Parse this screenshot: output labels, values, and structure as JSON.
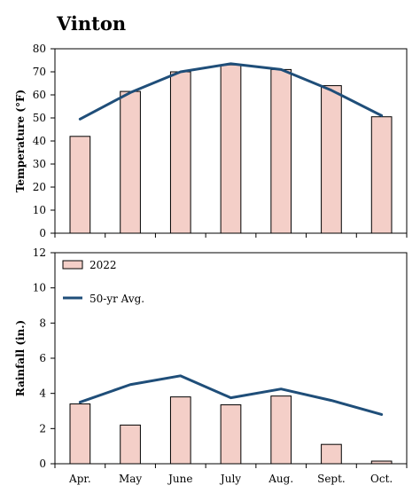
{
  "title": "Vinton",
  "colors": {
    "bar_fill": "#f4cfc8",
    "bar_stroke": "#000000",
    "line": "#1f4e79"
  },
  "chart_data": [
    {
      "type": "bar",
      "categories": [
        "Apr.",
        "May",
        "June",
        "July",
        "Aug.",
        "Sept.",
        "Oct."
      ],
      "ylabel": "Temperature (°F)",
      "ylim": [
        0,
        80
      ],
      "yticks": [
        0,
        10,
        20,
        30,
        40,
        50,
        60,
        70,
        80
      ],
      "show_xtick_labels": false,
      "legend": false,
      "series": [
        {
          "kind": "bar",
          "values": [
            42,
            61.5,
            70,
            73,
            71,
            64,
            50.5
          ]
        },
        {
          "kind": "line",
          "values": [
            49.5,
            61,
            70,
            73.5,
            71,
            62,
            51
          ]
        }
      ]
    },
    {
      "type": "bar",
      "categories": [
        "Apr.",
        "May",
        "June",
        "July",
        "Aug.",
        "Sept.",
        "Oct."
      ],
      "ylabel": "Rainfall (in.)",
      "ylim": [
        0,
        12
      ],
      "yticks": [
        0,
        2,
        4,
        6,
        8,
        10,
        12
      ],
      "show_xtick_labels": true,
      "legend": "top-left",
      "series": [
        {
          "kind": "bar",
          "name": "2022",
          "values": [
            3.4,
            2.2,
            3.8,
            3.35,
            3.85,
            1.1,
            0.15
          ]
        },
        {
          "kind": "line",
          "name": "50-yr Avg.",
          "values": [
            3.5,
            4.5,
            5,
            3.75,
            4.25,
            3.6,
            2.8
          ]
        }
      ]
    }
  ]
}
